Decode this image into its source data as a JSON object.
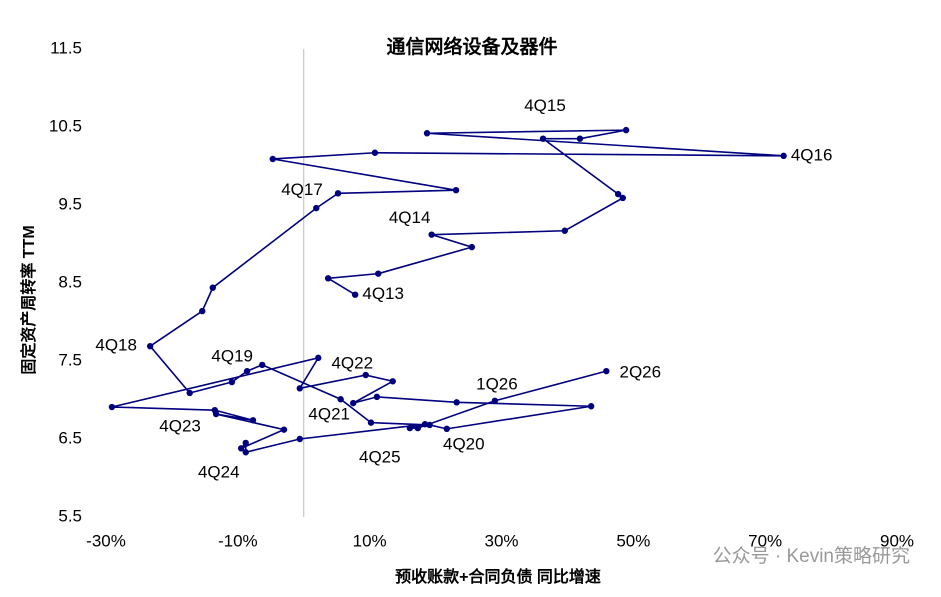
{
  "chart_data": {
    "type": "scatter",
    "connected": true,
    "title": "通信网络设备及器件",
    "x_label": "预收账款+合同负债 同比增速",
    "y_label": "固定资产周转率 TTM",
    "watermark": "公众号 · Kevin策略研究",
    "color": "#00007f",
    "x": [
      7.8,
      3.7,
      11.3,
      25.5,
      19.4,
      39.6,
      48.4,
      47.7,
      36.3,
      41.9,
      48.9,
      18.7,
      72.8,
      10.8,
      -4.7,
      23.1,
      5.2,
      1.9,
      -13.8,
      -15.4,
      -23.3,
      -17.3,
      -10.9,
      -8.6,
      -6.3,
      5.6,
      10.2,
      19.1,
      21.7,
      43.6,
      23.2,
      11.1,
      7.5,
      13.5,
      9.4,
      -0.6,
      2.2,
      -29.1,
      -13.5,
      -7.7,
      -13.3,
      -3.0,
      -9.5,
      -8.8,
      -8.8,
      -0.6,
      18.4,
      16.1,
      17.3,
      29.0,
      45.9
    ],
    "y": [
      8.35,
      8.56,
      8.62,
      8.96,
      9.12,
      9.17,
      9.59,
      9.64,
      10.35,
      10.35,
      10.46,
      10.42,
      10.13,
      10.17,
      10.09,
      9.69,
      9.65,
      9.46,
      8.44,
      8.14,
      7.69,
      7.09,
      7.23,
      7.37,
      7.45,
      7.01,
      6.71,
      6.68,
      6.63,
      6.92,
      6.97,
      7.04,
      6.96,
      7.24,
      7.32,
      7.15,
      7.54,
      6.91,
      6.87,
      6.74,
      6.82,
      6.62,
      6.38,
      6.45,
      6.33,
      6.5,
      6.69,
      6.64,
      6.64,
      6.99,
      7.37
    ],
    "point_labels": [
      "4Q13",
      null,
      null,
      null,
      "4Q14",
      null,
      null,
      null,
      "4Q15",
      null,
      null,
      null,
      "4Q16",
      null,
      null,
      null,
      "4Q17",
      null,
      null,
      null,
      "4Q18",
      null,
      null,
      null,
      "4Q19",
      null,
      null,
      null,
      "4Q20",
      null,
      null,
      null,
      "4Q21",
      null,
      null,
      null,
      "4Q22",
      null,
      null,
      null,
      "4Q23",
      null,
      null,
      null,
      "4Q24",
      null,
      null,
      null,
      "4Q25",
      "1Q26",
      "2Q26"
    ],
    "xlim": [
      -30,
      90
    ],
    "xticks": [
      {
        "value": -30,
        "label": "-30%"
      },
      {
        "value": -10,
        "label": "-10%"
      },
      {
        "value": 10,
        "label": "10%"
      },
      {
        "value": 30,
        "label": "30%"
      },
      {
        "value": 50,
        "label": "50%"
      },
      {
        "value": 70,
        "label": "70%"
      },
      {
        "value": 90,
        "label": "90%"
      }
    ],
    "ylim": [
      5.5,
      11.5
    ],
    "yticks": [
      5.5,
      6.5,
      7.5,
      8.5,
      9.5,
      10.5,
      11.5
    ],
    "zero_line": true
  }
}
